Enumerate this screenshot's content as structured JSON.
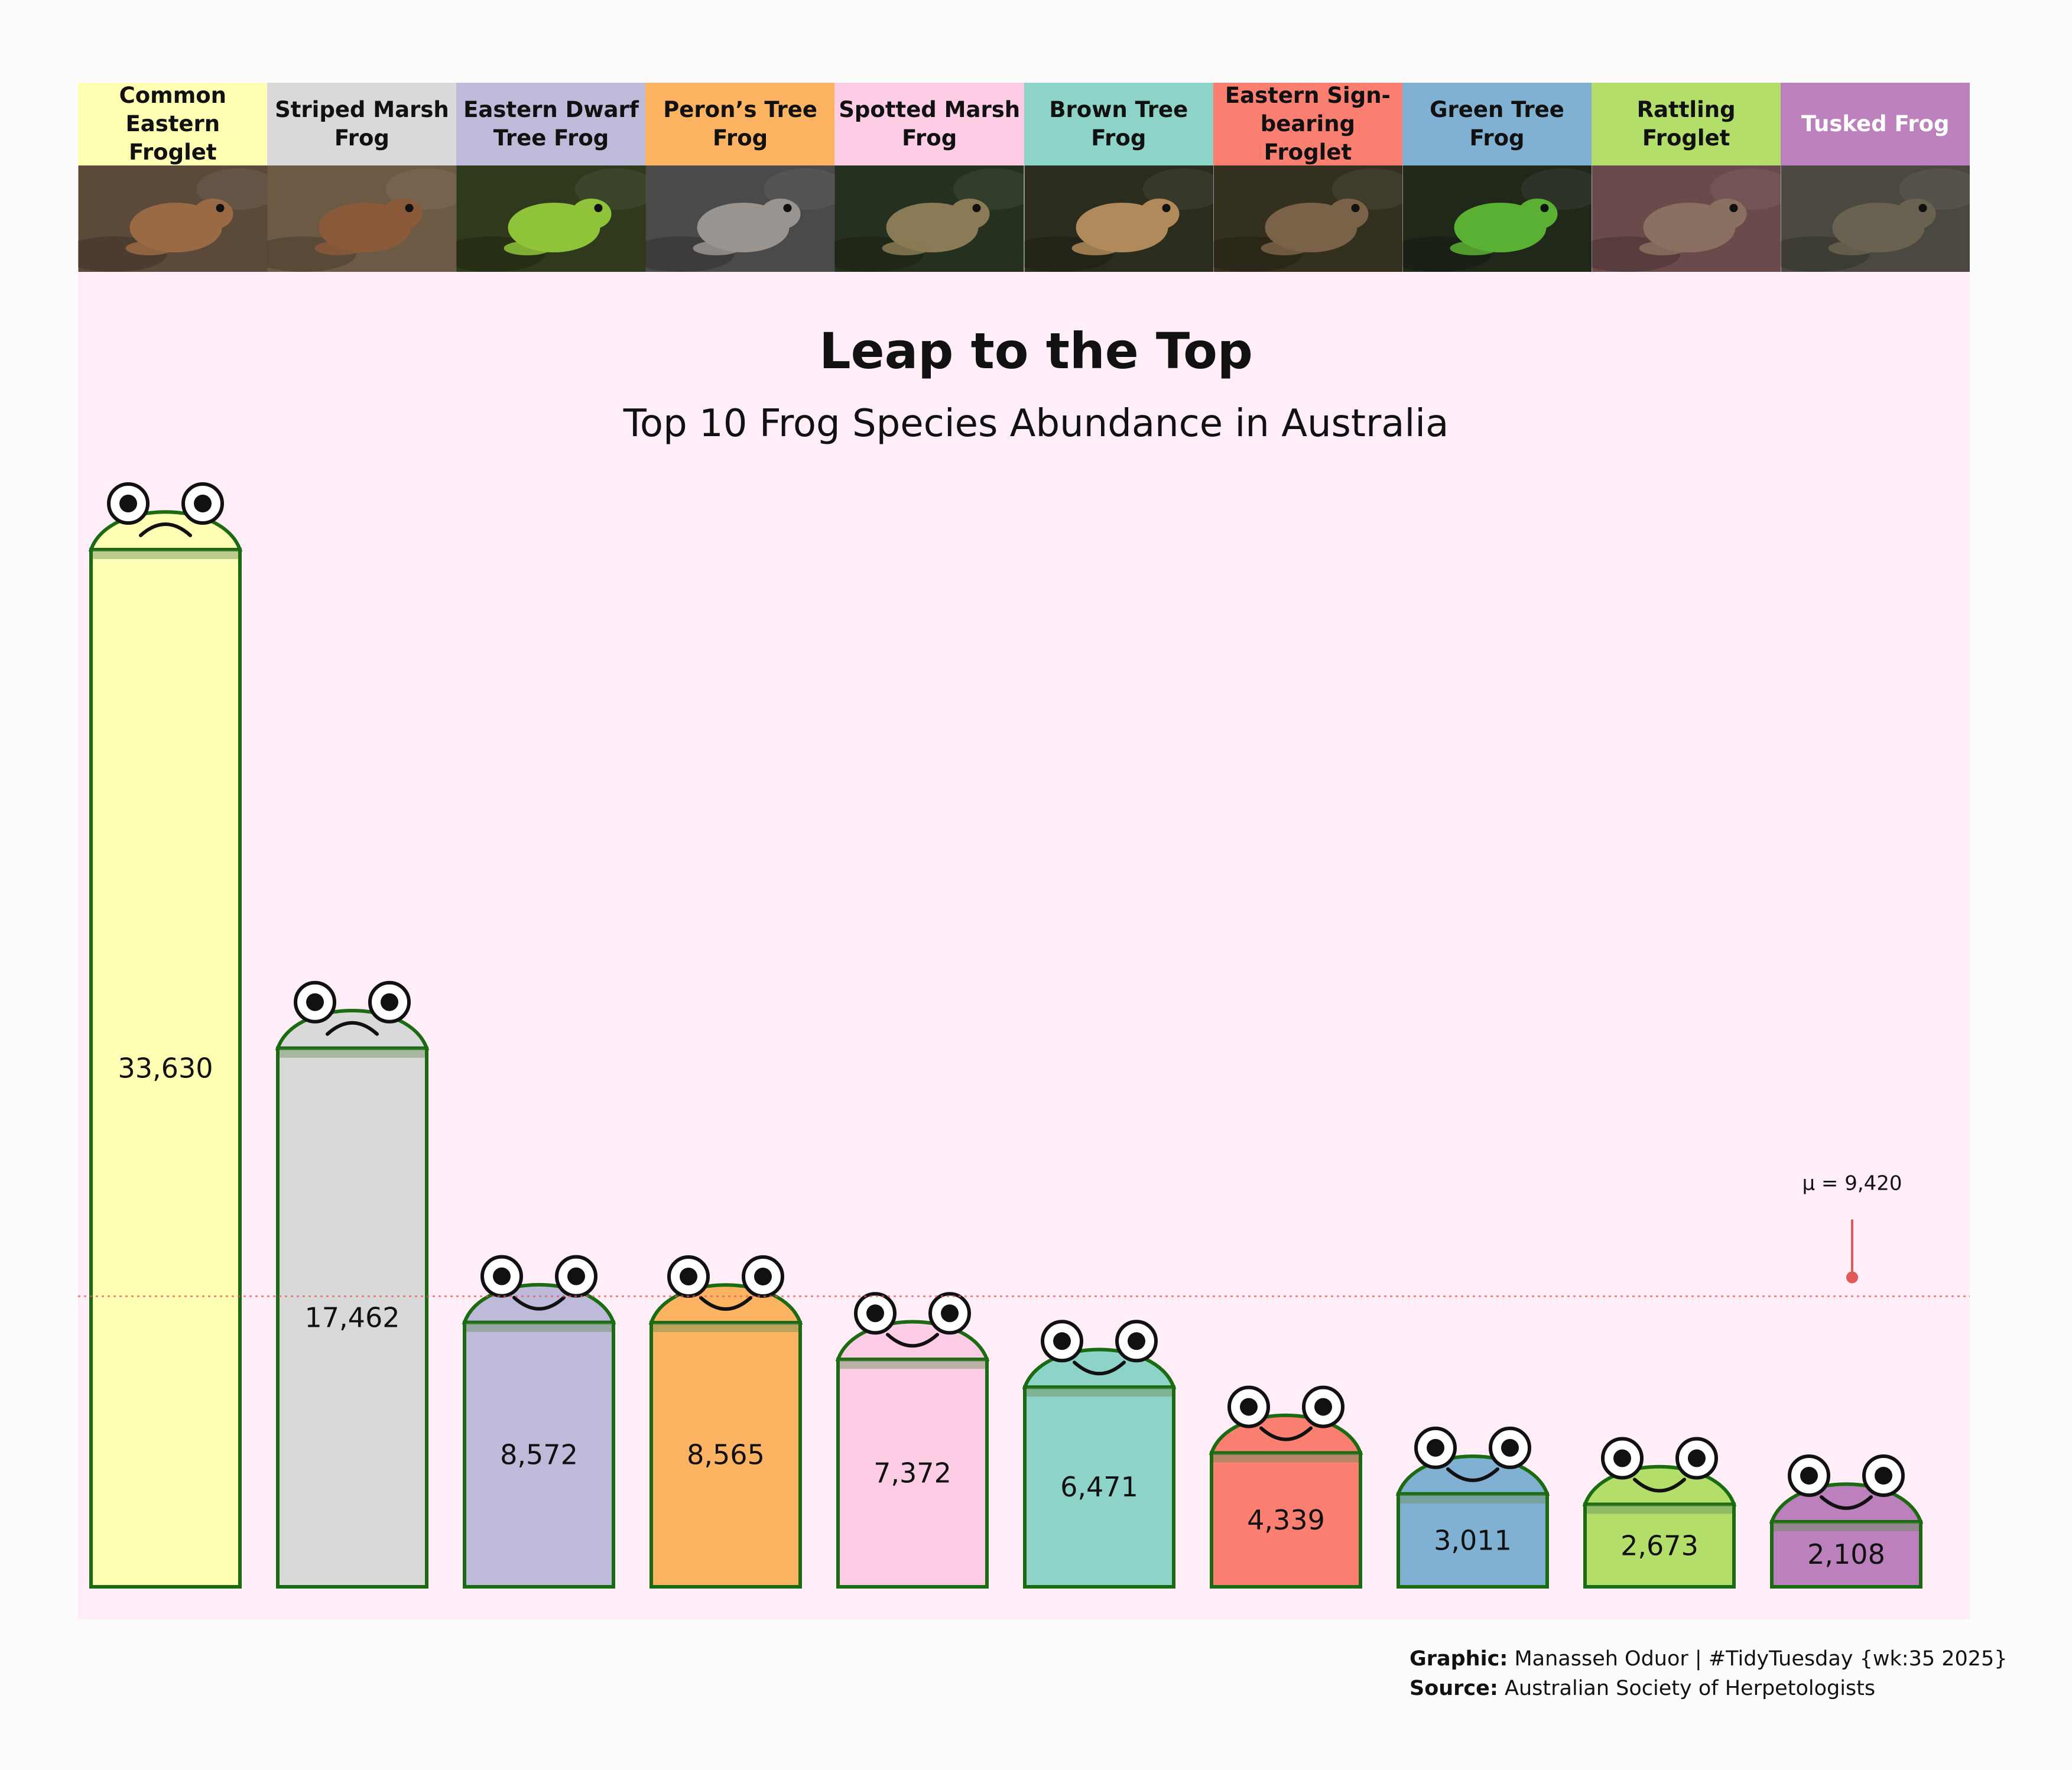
{
  "colors": {
    "background": "#fdfcfc",
    "panel": "#ffeef8",
    "outline": "#1a6b12",
    "mean_line": "#e05a5a",
    "palette": [
      "#ffffb3",
      "#d9d9d9",
      "#bebada",
      "#fdb462",
      "#fccde5",
      "#8dd3c7",
      "#fb8072",
      "#80b1d3",
      "#b3de69",
      "#bc80bd"
    ]
  },
  "chart_data": {
    "type": "bar",
    "title": "Leap to the Top",
    "subtitle": "Top 10 Frog Species Abundance in Australia",
    "categories": [
      "Common Eastern Froglet",
      "Striped Marsh Frog",
      "Eastern Dwarf Tree Frog",
      "Peron’s Tree Frog",
      "Spotted Marsh Frog",
      "Brown Tree Frog",
      "Eastern Sign-bearing Froglet",
      "Green Tree Frog",
      "Rattling Froglet",
      "Tusked Frog"
    ],
    "values": [
      33630,
      17462,
      8572,
      8565,
      7372,
      6471,
      4339,
      3011,
      2673,
      2108
    ],
    "value_labels": [
      "33,630",
      "17,462",
      "8,572",
      "8,565",
      "7,372",
      "6,471",
      "4,339",
      "3,011",
      "2,673",
      "2,108"
    ],
    "mean": 9420,
    "mean_label": "μ = 9,420",
    "moods": [
      "sad",
      "sad",
      "happy",
      "happy",
      "happy",
      "happy",
      "happy",
      "happy",
      "happy",
      "happy"
    ],
    "ylim": [
      0,
      36000
    ],
    "grid": false,
    "legend": "none"
  },
  "header": {
    "labels": [
      [
        "Common Eastern",
        "Froglet"
      ],
      [
        "Striped Marsh",
        "Frog"
      ],
      [
        "Eastern Dwarf",
        "Tree Frog"
      ],
      [
        "Peron’s Tree",
        "Frog"
      ],
      [
        "Spotted Marsh",
        "Frog"
      ],
      [
        "Brown Tree",
        "Frog"
      ],
      [
        "Eastern Sign-",
        "bearing Froglet"
      ],
      [
        "Green Tree",
        "Frog"
      ],
      [
        "Rattling Froglet"
      ],
      [
        "Tusked Frog"
      ]
    ],
    "label_text_colors": [
      "#111111",
      "#111111",
      "#111111",
      "#111111",
      "#111111",
      "#111111",
      "#111111",
      "#111111",
      "#111111",
      "#ffffff"
    ],
    "photo_tones": [
      {
        "bg": "#5b4a3a",
        "body": "#9a6a45"
      },
      {
        "bg": "#6d5a44",
        "body": "#8a5a3a"
      },
      {
        "bg": "#2f3a1c",
        "body": "#8fc43a"
      },
      {
        "bg": "#4a4a4a",
        "body": "#9a9490"
      },
      {
        "bg": "#26301f",
        "body": "#8a7a55"
      },
      {
        "bg": "#2a2c1e",
        "body": "#b08a5a"
      },
      {
        "bg": "#34301f",
        "body": "#7a6248"
      },
      {
        "bg": "#20281a",
        "body": "#5ab032"
      },
      {
        "bg": "#6a4a4a",
        "body": "#8a7060"
      },
      {
        "bg": "#4a4840",
        "body": "#6a6250"
      }
    ]
  },
  "caption": {
    "graphic_label": "Graphic:",
    "graphic_text": " Manasseh Oduor | #TidyTuesday {wk:35 2025}",
    "source_label": "Source:",
    "source_text": " Australian Society of Herpetologists"
  }
}
